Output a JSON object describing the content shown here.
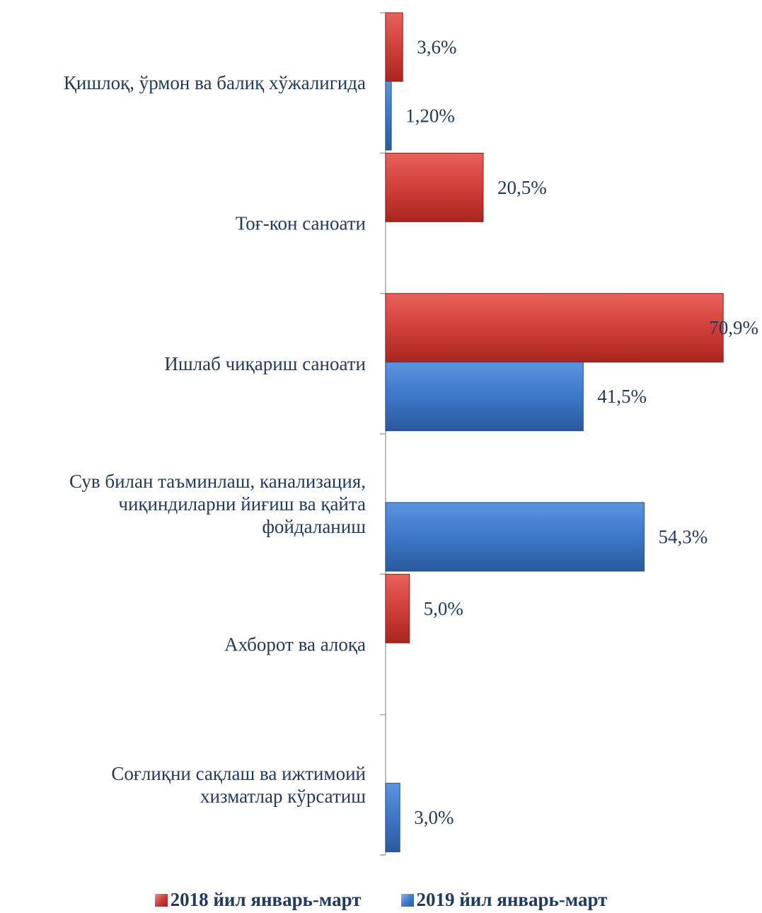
{
  "chart_data": {
    "type": "bar",
    "orientation": "horizontal",
    "categories": [
      [
        "Қишлоқ, ўрмон ва балиқ хўжалигида"
      ],
      [
        "Тоғ-кон саноати"
      ],
      [
        "Ишлаб чиқариш саноати"
      ],
      [
        "Сув билан таъминлаш, канализация,",
        "чиқиндиларни йиғиш ва қайта",
        "фойдаланиш"
      ],
      [
        "Ахборот ва алоқа"
      ],
      [
        "Соғлиқни сақлаш ва ижтимоий",
        "хизматлар кўрсатиш"
      ]
    ],
    "series": [
      {
        "name": "2018 йил январь-март",
        "color": "#c0392b",
        "values": [
          3.6,
          20.5,
          70.9,
          null,
          5.0,
          null
        ],
        "labels": [
          "3,6%",
          "20,5%",
          "70,9%",
          "",
          "5,0%",
          ""
        ]
      },
      {
        "name": "2019 йил январь-март",
        "color": "#3a74c4",
        "values": [
          1.2,
          null,
          41.5,
          54.3,
          null,
          3.0
        ],
        "labels": [
          "1,20%",
          "",
          "41,5%",
          "54,3%",
          "",
          "3,0%"
        ]
      }
    ],
    "xlim": [
      0,
      75
    ],
    "legend_position": "bottom",
    "grid": false
  }
}
